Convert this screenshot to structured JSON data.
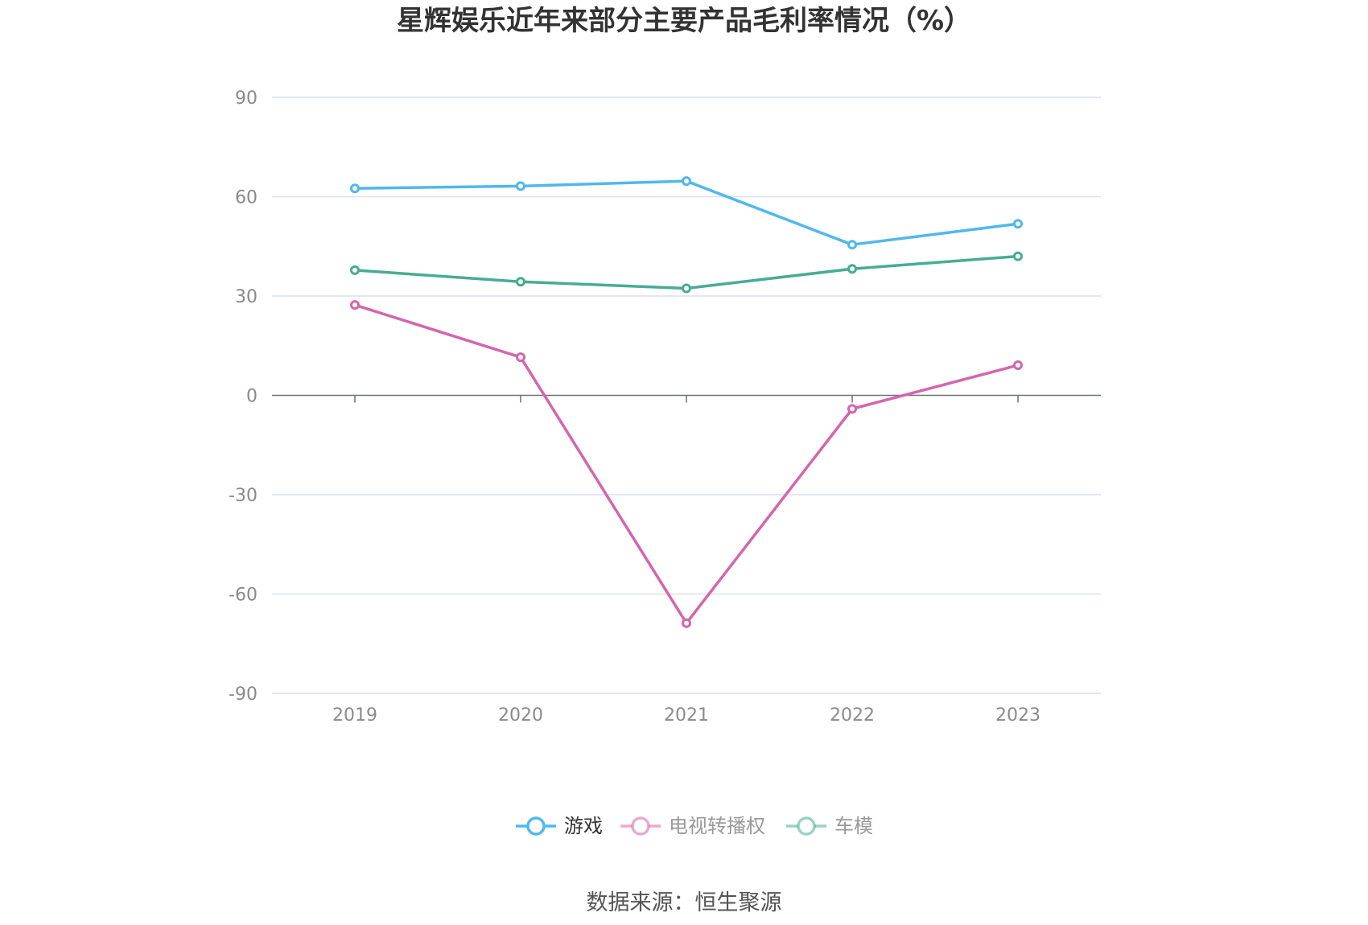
{
  "chart_data": {
    "type": "line",
    "title": "星辉娱乐近年来部分主要产品毛利率情况（%）",
    "categories": [
      "2019",
      "2020",
      "2021",
      "2022",
      "2023"
    ],
    "ylim": [
      -90,
      90
    ],
    "yticks": [
      90,
      60,
      30,
      0,
      -30,
      -60,
      -90
    ],
    "grid": true,
    "legend_position": "bottom",
    "series": [
      {
        "name": "游戏",
        "color": "#4fb8ec",
        "values": [
          62.5,
          63.2,
          64.7,
          45.5,
          51.8
        ]
      },
      {
        "name": "电视转播权",
        "color": "#d465ad",
        "values": [
          27.3,
          11.5,
          -68.8,
          -4.1,
          9.1
        ]
      },
      {
        "name": "车模",
        "color": "#46ad92",
        "values": [
          37.8,
          34.3,
          32.3,
          38.2,
          42.0
        ]
      }
    ],
    "source": "数据来源：恒生聚源"
  },
  "colors": {
    "grid": "#dcdff0",
    "axis": "#6e7079",
    "legend_inactive_text": "#999999",
    "legend_active_text": "#333333"
  }
}
